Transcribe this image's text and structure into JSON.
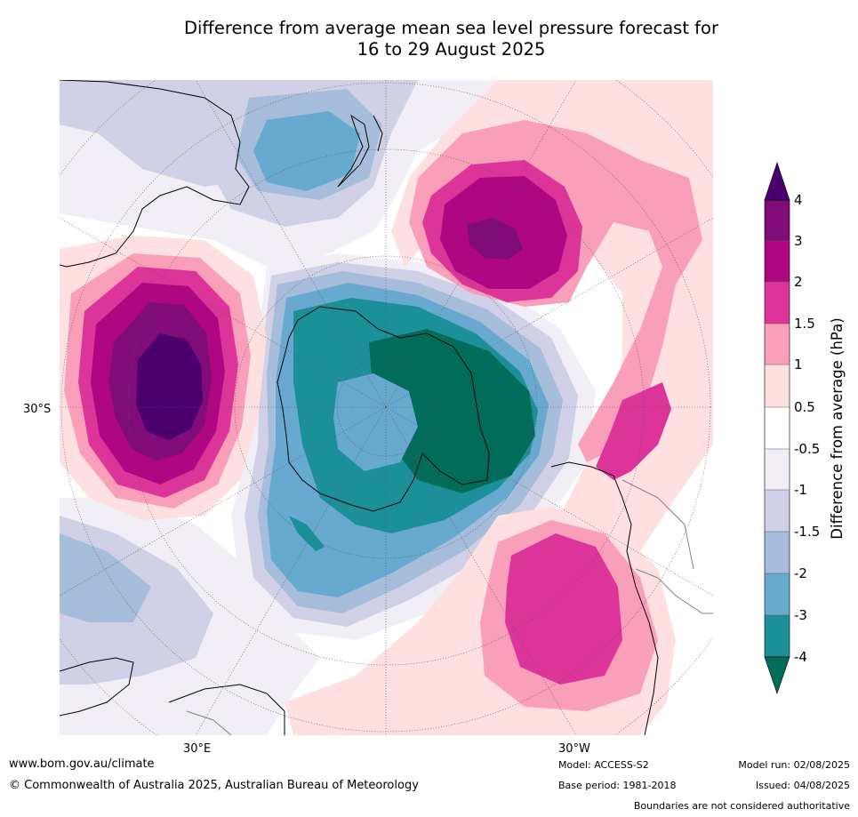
{
  "title": {
    "line1": "Difference from average mean sea level pressure forecast for",
    "line2": "16 to 29 August 2025"
  },
  "map": {
    "projection": "south polar stereographic",
    "lat_label": "30°S",
    "lon_labels": {
      "east": "30°E",
      "west": "30°W"
    },
    "ocean_color": "#ffffff",
    "coastline_color": "#000000",
    "boundary_color": "#808080"
  },
  "colorbar": {
    "label": "Difference from average (hPa)",
    "tick_labels": [
      "4",
      "3",
      "2",
      "1.5",
      "1",
      "0.5",
      "-0.5",
      "-1",
      "-1.5",
      "-2",
      "-3",
      "-4"
    ],
    "colors_top_to_bottom": [
      "#4b006e",
      "#7f0c78",
      "#ae0680",
      "#dc3499",
      "#f99fb9",
      "#fde0df",
      "#ffffff",
      "#f2eef5",
      "#d0d1e6",
      "#a6bddb",
      "#67a9cf",
      "#1c9099",
      "#016c59"
    ]
  },
  "footer": {
    "website": "www.bom.gov.au/climate",
    "copyright": "© Commonwealth of Australia 2025, Australian Bureau of Meteorology",
    "model": "Model: ACCESS-S2",
    "base_period": "Base period: 1981-2018",
    "model_run": "Model run: 02/08/2025",
    "issued": "Issued: 04/08/2025",
    "disclaimer": "Boundaries are not considered authoritative"
  }
}
